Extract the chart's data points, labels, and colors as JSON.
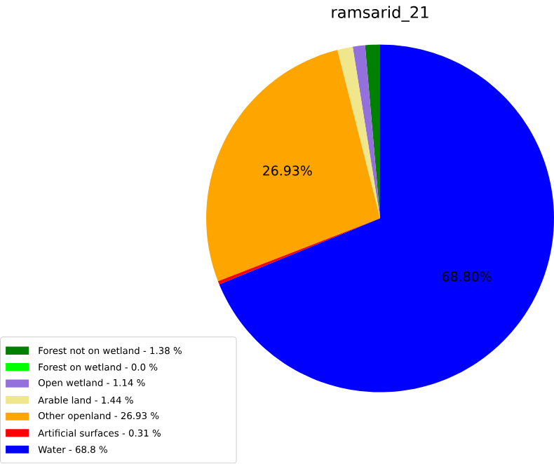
{
  "chart_data": {
    "type": "pie",
    "title": "ramsarid_21",
    "categories": [
      "Forest not on wetland - 1.38 %",
      "Forest on wetland - 0.0 %",
      "Open wetland - 1.14 %",
      "Arable land - 1.44 %",
      "Other openland - 26.93 %",
      "Artificial surfaces - 0.31 %",
      "Water - 68.8 %"
    ],
    "values": [
      1.38,
      0.0,
      1.14,
      1.44,
      26.93,
      0.31,
      68.8
    ],
    "colors": [
      "#008000",
      "#00ff00",
      "#9370db",
      "#f0e68c",
      "#ffa500",
      "#ff0000",
      "#0000ff"
    ],
    "value_labels": [
      null,
      null,
      null,
      null,
      "26.93%",
      null,
      "68.80%"
    ],
    "legend": "bottom left"
  }
}
